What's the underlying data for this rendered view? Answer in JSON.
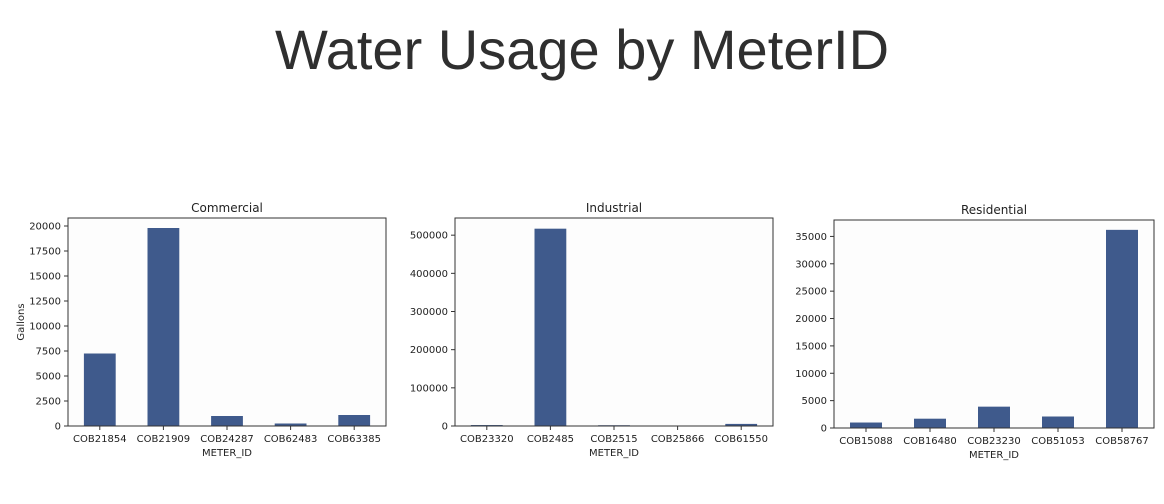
{
  "title": "Water Usage by MeterID",
  "colors": {
    "bar": "#3f5a8c",
    "plot_bg": "#fdfdfd",
    "frame": "#333333"
  },
  "chart_data": [
    {
      "type": "bar",
      "title": "Commercial",
      "xlabel": "METER_ID",
      "ylabel": "Gallons",
      "categories": [
        "COB21854",
        "COB21909",
        "COB24287",
        "COB62483",
        "COB63385"
      ],
      "values": [
        7250,
        19800,
        1000,
        250,
        1100
      ],
      "ylim": [
        0,
        20800
      ],
      "yticks": [
        0,
        2500,
        5000,
        7500,
        10000,
        12500,
        15000,
        17500,
        20000
      ],
      "grid": false
    },
    {
      "type": "bar",
      "title": "Industrial",
      "xlabel": "METER_ID",
      "ylabel": "",
      "categories": [
        "COB23320",
        "COB2485",
        "COB2515",
        "COB25866",
        "COB61550"
      ],
      "values": [
        2500,
        517000,
        2000,
        500,
        5500
      ],
      "ylim": [
        0,
        545000
      ],
      "yticks": [
        0,
        100000,
        200000,
        300000,
        400000,
        500000
      ],
      "grid": false
    },
    {
      "type": "bar",
      "title": "Residential",
      "xlabel": "METER_ID",
      "ylabel": "",
      "categories": [
        "COB15088",
        "COB16480",
        "COB23230",
        "COB51053",
        "COB58767"
      ],
      "values": [
        1000,
        1700,
        3900,
        2100,
        36200
      ],
      "ylim": [
        0,
        38000
      ],
      "yticks": [
        0,
        5000,
        10000,
        15000,
        20000,
        25000,
        30000,
        35000
      ],
      "grid": false
    }
  ]
}
